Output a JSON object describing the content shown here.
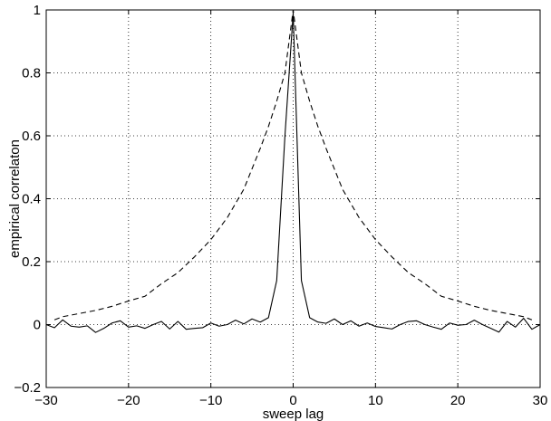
{
  "chart_data": {
    "type": "line",
    "title": "",
    "xlabel": "sweep lag",
    "ylabel": "empirical correlaton",
    "xlim": [
      -30,
      30
    ],
    "ylim": [
      -0.2,
      1
    ],
    "xticks": [
      -30,
      -20,
      -10,
      0,
      10,
      20,
      30
    ],
    "xtick_labels": [
      "−30",
      "−20",
      "−10",
      "0",
      "10",
      "20",
      "30"
    ],
    "yticks": [
      -0.2,
      0,
      0.2,
      0.4,
      0.6,
      0.8,
      1
    ],
    "ytick_labels": [
      "−0.2",
      "0",
      "0.2",
      "0.4",
      "0.6",
      "0.8",
      "1"
    ],
    "grid": true,
    "legend": "none",
    "series": [
      {
        "style": "solid",
        "color": "#000000",
        "x": [
          -30,
          -29,
          -28,
          -27,
          -26,
          -25,
          -24,
          -23,
          -22,
          -21,
          -20,
          -19,
          -18,
          -17,
          -16,
          -15,
          -14,
          -13,
          -12,
          -11,
          -10,
          -9,
          -8,
          -7,
          -6,
          -5,
          -4,
          -3,
          -2,
          -1,
          0,
          1,
          2,
          3,
          4,
          5,
          6,
          7,
          8,
          9,
          10,
          11,
          12,
          13,
          14,
          15,
          16,
          17,
          18,
          19,
          20,
          21,
          22,
          23,
          24,
          25,
          26,
          27,
          28,
          29,
          30
        ],
        "y": [
          0.0,
          -0.01,
          0.015,
          -0.005,
          -0.008,
          -0.004,
          -0.025,
          -0.012,
          0.005,
          0.012,
          -0.008,
          -0.004,
          -0.012,
          0.0,
          0.01,
          -0.014,
          0.01,
          -0.015,
          -0.012,
          -0.01,
          0.005,
          -0.005,
          0.0,
          0.014,
          0.002,
          0.018,
          0.008,
          0.022,
          0.14,
          0.6,
          0.99,
          0.14,
          0.022,
          0.008,
          0.004,
          0.018,
          0.0,
          0.012,
          -0.005,
          0.005,
          -0.006,
          -0.01,
          -0.014,
          0.0,
          0.01,
          0.012,
          0.0,
          -0.008,
          -0.015,
          0.005,
          -0.002,
          0.0,
          0.014,
          0.0,
          -0.012,
          -0.024,
          0.01,
          -0.008,
          0.02,
          -0.015,
          0.0
        ]
      },
      {
        "style": "dashed",
        "color": "#000000",
        "x": [
          -29,
          -28,
          -26,
          -24,
          -22,
          -20,
          -18,
          -16,
          -14,
          -12,
          -10,
          -8,
          -6,
          -4,
          -3,
          -2,
          -1,
          0,
          1,
          2,
          3,
          4,
          6,
          8,
          10,
          12,
          14,
          16,
          18,
          20,
          22,
          24,
          26,
          28,
          29
        ],
        "y": [
          0.015,
          0.025,
          0.035,
          0.045,
          0.058,
          0.075,
          0.09,
          0.13,
          0.165,
          0.215,
          0.27,
          0.34,
          0.43,
          0.56,
          0.63,
          0.71,
          0.8,
          1.0,
          0.8,
          0.71,
          0.63,
          0.56,
          0.43,
          0.34,
          0.27,
          0.215,
          0.165,
          0.13,
          0.09,
          0.075,
          0.058,
          0.045,
          0.035,
          0.025,
          0.015
        ]
      }
    ]
  }
}
